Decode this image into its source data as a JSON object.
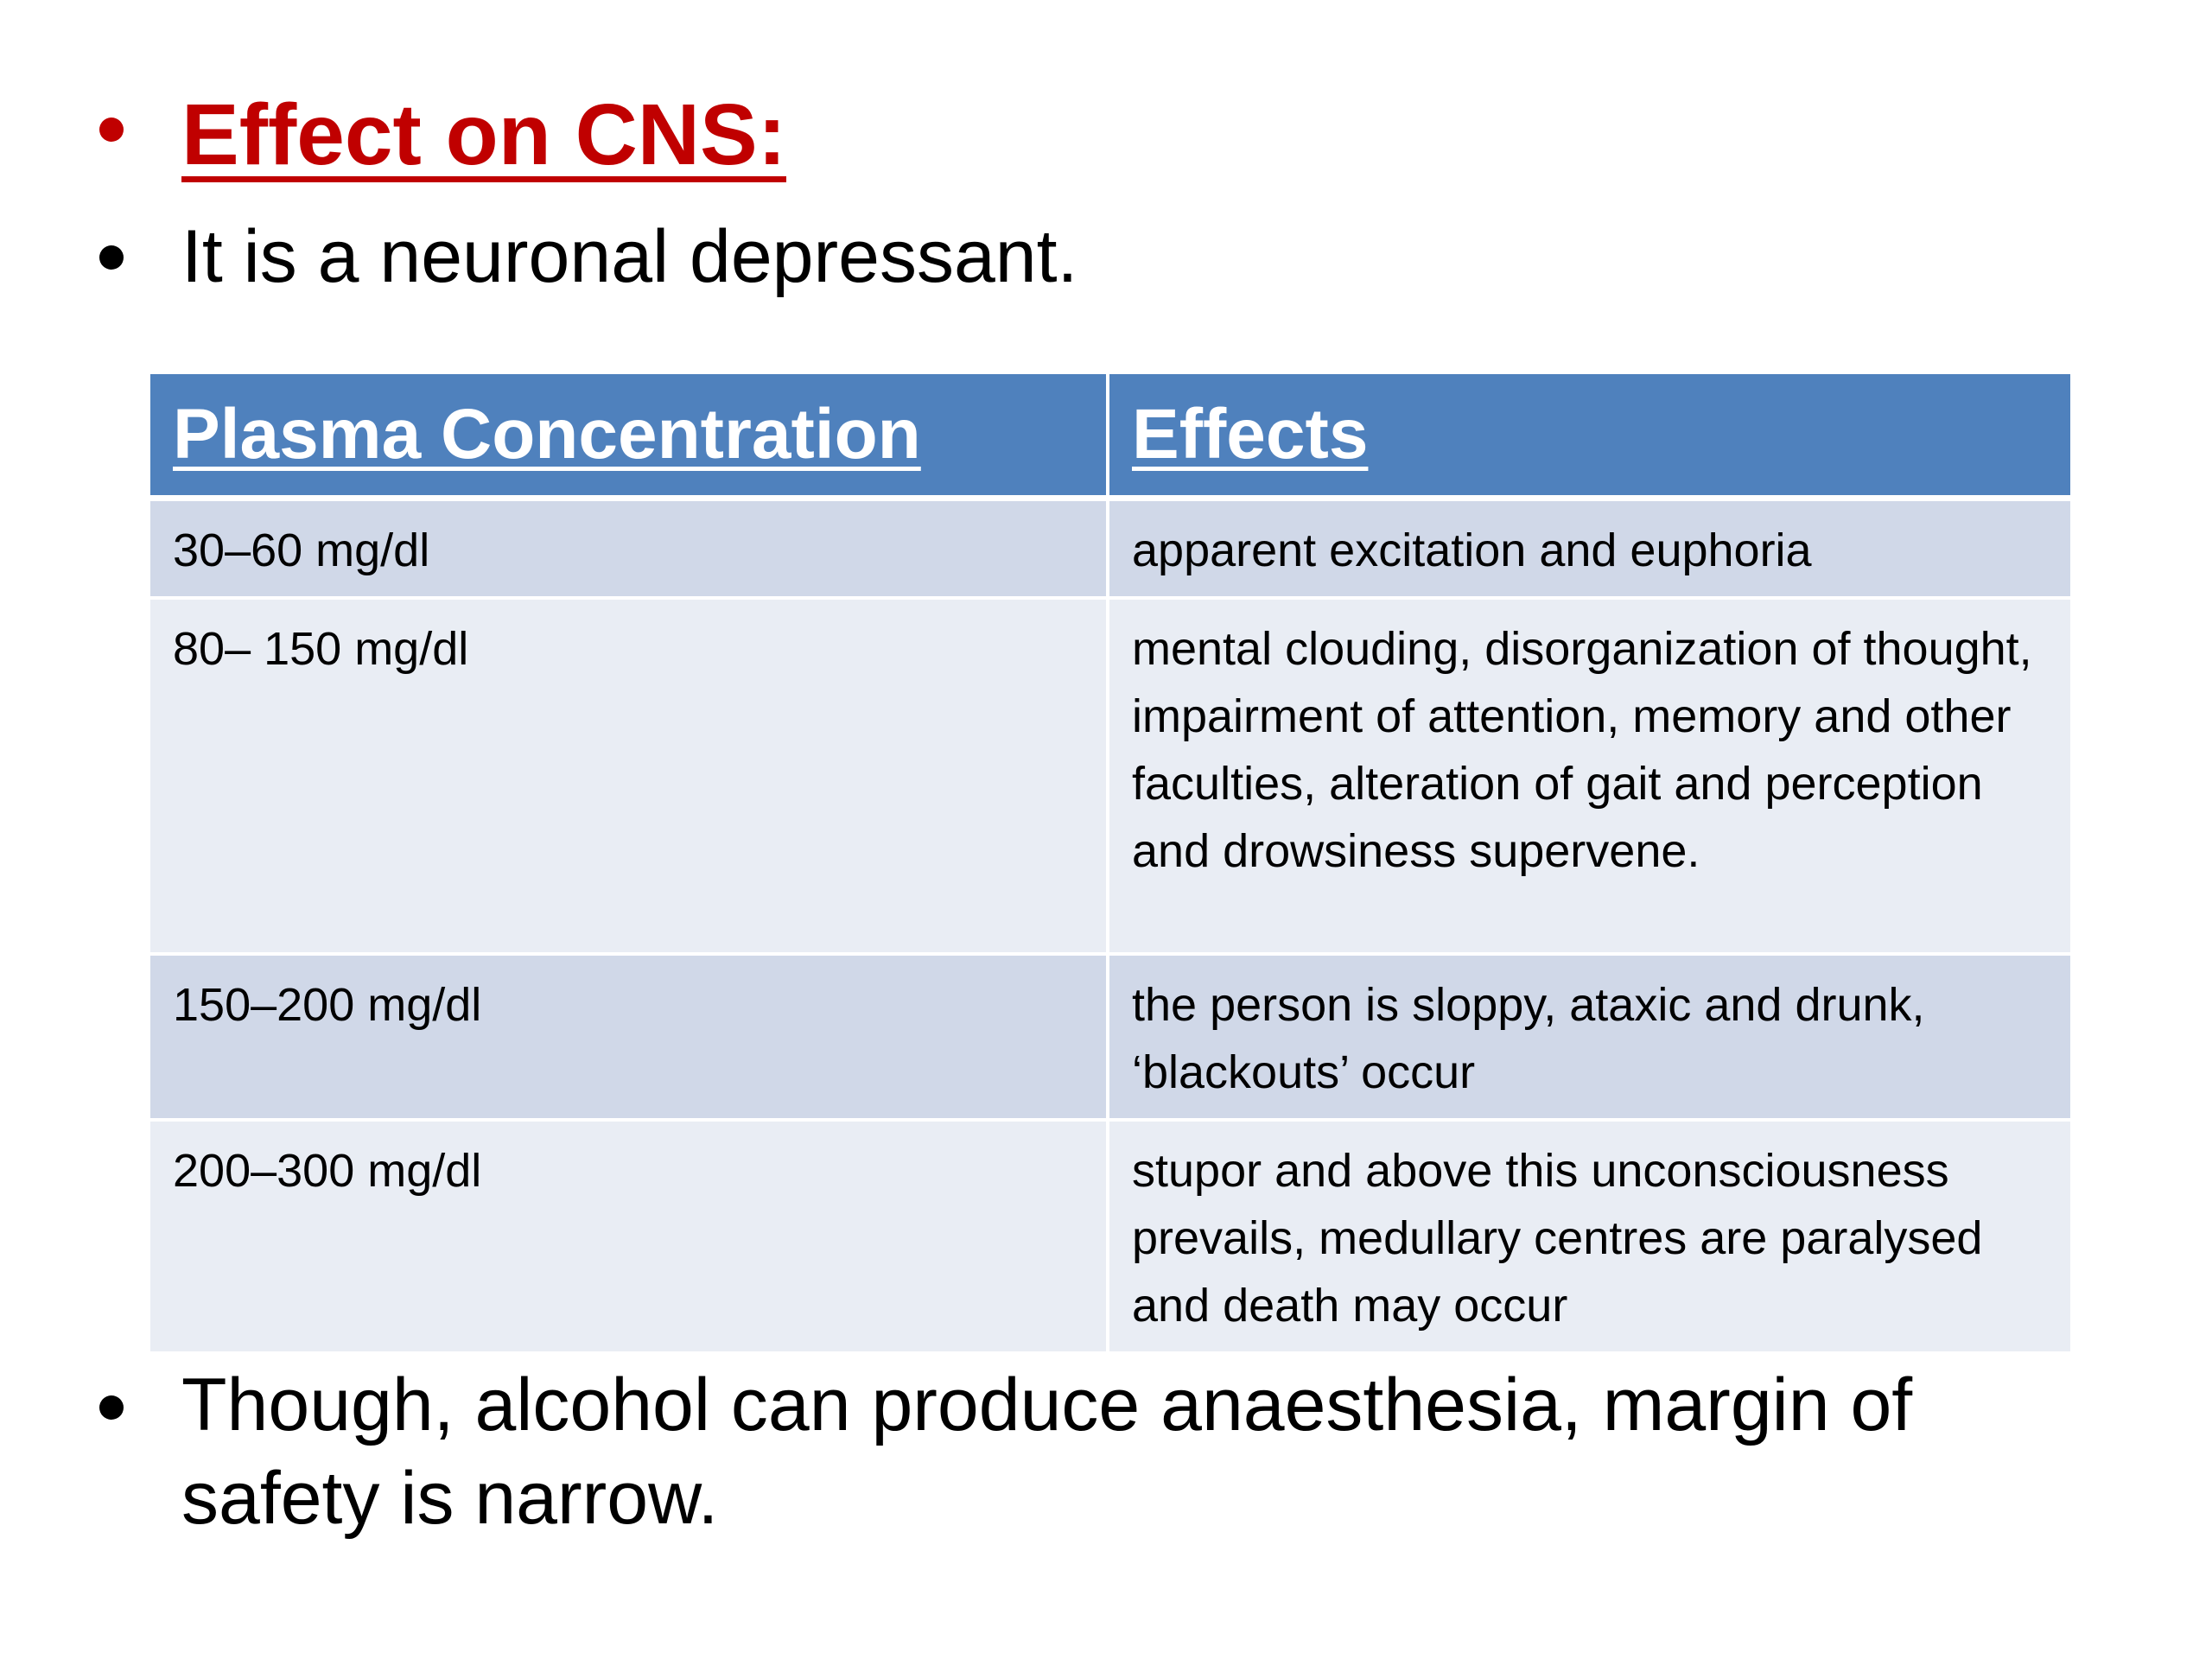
{
  "slide": {
    "title": "Effect on CNS:",
    "intro": "It is a neuronal depressant.",
    "footer": "Though, alcohol can produce anaesthesia, margin of safety is narrow."
  },
  "table": {
    "headers": [
      "Plasma Concentration",
      "Effects"
    ],
    "rows": [
      {
        "concentration": "30–60 mg/dl",
        "effect": "apparent excitation and euphoria"
      },
      {
        "concentration": "80– 150 mg/dl",
        "effect": "mental clouding, disorganization of thought, impairment of attention, memory and other faculties, alteration of gait and perception and drowsiness supervene."
      },
      {
        "concentration": "150–200 mg/dl",
        "effect": "the person is sloppy, ataxic and drunk, ‘blackouts’ occur"
      },
      {
        "concentration": "200–300 mg/dl",
        "effect": "stupor and above this unconsciousness prevails, medullary centres are paralysed and death may occur"
      }
    ]
  },
  "colors": {
    "title": "#c00000",
    "header_bg": "#4f81bd",
    "row_odd": "#d0d8e8",
    "row_even": "#e9edf4"
  }
}
